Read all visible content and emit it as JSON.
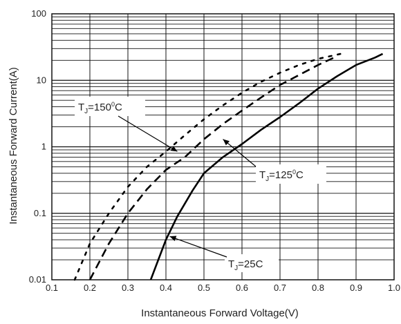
{
  "chart_data": {
    "type": "line",
    "xlabel": "Instantaneous Forward Voltage(V)",
    "ylabel": "Instantaneous Forward Current(A)",
    "xlim": [
      0.1,
      1.0
    ],
    "ylim": [
      0.01,
      100
    ],
    "yscale": "log",
    "x_ticks": [
      "0.1",
      "0.2",
      "0.3",
      "0.4",
      "0.5",
      "0.6",
      "0.7",
      "0.8",
      "0.9",
      "1.0"
    ],
    "y_ticks": [
      "0.01",
      "0.1",
      "1",
      "10",
      "100"
    ],
    "grid": true,
    "series": [
      {
        "name": "TJ=25C",
        "line_style": "solid",
        "points": [
          [
            0.36,
            0.01
          ],
          [
            0.38,
            0.02
          ],
          [
            0.4,
            0.04
          ],
          [
            0.43,
            0.09
          ],
          [
            0.47,
            0.22
          ],
          [
            0.5,
            0.4
          ],
          [
            0.55,
            0.7
          ],
          [
            0.6,
            1.1
          ],
          [
            0.65,
            1.8
          ],
          [
            0.7,
            2.8
          ],
          [
            0.75,
            4.5
          ],
          [
            0.8,
            7.5
          ],
          [
            0.85,
            11.5
          ],
          [
            0.9,
            17
          ],
          [
            0.95,
            22
          ],
          [
            0.97,
            25
          ]
        ]
      },
      {
        "name": "TJ=125°C",
        "line_style": "dashed",
        "points": [
          [
            0.2,
            0.01
          ],
          [
            0.25,
            0.035
          ],
          [
            0.3,
            0.1
          ],
          [
            0.35,
            0.23
          ],
          [
            0.4,
            0.45
          ],
          [
            0.45,
            0.7
          ],
          [
            0.5,
            1.3
          ],
          [
            0.55,
            2.2
          ],
          [
            0.6,
            3.5
          ],
          [
            0.65,
            5.5
          ],
          [
            0.7,
            8.5
          ],
          [
            0.75,
            12
          ],
          [
            0.8,
            17
          ],
          [
            0.85,
            23
          ]
        ]
      },
      {
        "name": "TJ=150°C",
        "line_style": "dotted",
        "points": [
          [
            0.16,
            0.01
          ],
          [
            0.2,
            0.035
          ],
          [
            0.25,
            0.1
          ],
          [
            0.3,
            0.25
          ],
          [
            0.35,
            0.5
          ],
          [
            0.4,
            0.85
          ],
          [
            0.45,
            1.5
          ],
          [
            0.5,
            2.6
          ],
          [
            0.55,
            4.2
          ],
          [
            0.6,
            6.5
          ],
          [
            0.65,
            9.5
          ],
          [
            0.7,
            13
          ],
          [
            0.75,
            17
          ],
          [
            0.8,
            21
          ],
          [
            0.86,
            25
          ]
        ]
      }
    ],
    "annotations": [
      {
        "id": "ann-150",
        "main": "T",
        "sub": "J",
        "mid": "=150",
        "sup": "0",
        "tail": "C",
        "target": [
          0.43,
          0.85
        ]
      },
      {
        "id": "ann-125",
        "main": "T",
        "sub": "J",
        "mid": "=125",
        "sup": "0",
        "tail": "C",
        "target": [
          0.55,
          1.3
        ]
      },
      {
        "id": "ann-25",
        "main": "T",
        "sub": "J",
        "mid": "=25C",
        "sup": "",
        "tail": "",
        "target": [
          0.41,
          0.045
        ]
      }
    ]
  }
}
